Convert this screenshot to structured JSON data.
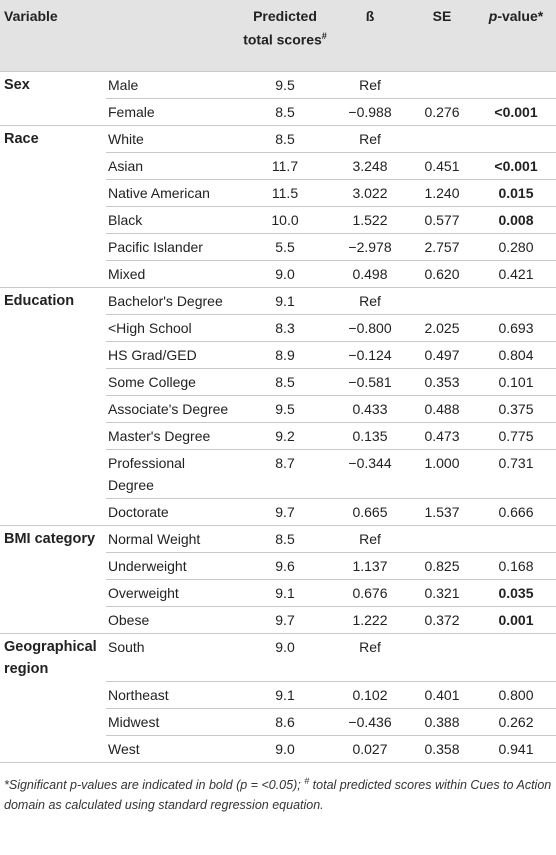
{
  "headers": {
    "variable": "Variable",
    "predicted": "Predicted total scores",
    "predicted_mark": "#",
    "beta": "ß",
    "se": "SE",
    "p_italic": "p",
    "p_rest": "-value*"
  },
  "groups": [
    {
      "variable": "Sex",
      "rows": [
        {
          "category": "Male",
          "pred": "9.5",
          "beta": "Ref",
          "se": "",
          "p": "",
          "bold": false
        },
        {
          "category": "Female",
          "pred": "8.5",
          "beta": "−0.988",
          "se": "0.276",
          "p": "<0.001",
          "bold": true
        }
      ]
    },
    {
      "variable": "Race",
      "rows": [
        {
          "category": "White",
          "pred": "8.5",
          "beta": "Ref",
          "se": "",
          "p": "",
          "bold": false
        },
        {
          "category": "Asian",
          "pred": "11.7",
          "beta": "3.248",
          "se": "0.451",
          "p": "<0.001",
          "bold": true
        },
        {
          "category": "Native American",
          "pred": "11.5",
          "beta": "3.022",
          "se": "1.240",
          "p": "0.015",
          "bold": true
        },
        {
          "category": "Black",
          "pred": "10.0",
          "beta": "1.522",
          "se": "0.577",
          "p": "0.008",
          "bold": true
        },
        {
          "category": "Pacific Islander",
          "pred": "5.5",
          "beta": "−2.978",
          "se": "2.757",
          "p": "0.280",
          "bold": false
        },
        {
          "category": "Mixed",
          "pred": "9.0",
          "beta": "0.498",
          "se": "0.620",
          "p": "0.421",
          "bold": false
        }
      ]
    },
    {
      "variable": "Education",
      "rows": [
        {
          "category": "Bachelor's Degree",
          "pred": "9.1",
          "beta": "Ref",
          "se": "",
          "p": "",
          "bold": false
        },
        {
          "category": "<High School",
          "pred": "8.3",
          "beta": "−0.800",
          "se": "2.025",
          "p": "0.693",
          "bold": false
        },
        {
          "category": "HS Grad/GED",
          "pred": "8.9",
          "beta": "−0.124",
          "se": "0.497",
          "p": "0.804",
          "bold": false
        },
        {
          "category": "Some College",
          "pred": "8.5",
          "beta": "−0.581",
          "se": "0.353",
          "p": "0.101",
          "bold": false
        },
        {
          "category": "Associate's Degree",
          "pred": "9.5",
          "beta": "0.433",
          "se": "0.488",
          "p": "0.375",
          "bold": false
        },
        {
          "category": "Master's Degree",
          "pred": "9.2",
          "beta": "0.135",
          "se": "0.473",
          "p": "0.775",
          "bold": false
        },
        {
          "category": "Professional Degree",
          "pred": "8.7",
          "beta": "−0.344",
          "se": "1.000",
          "p": "0.731",
          "bold": false
        },
        {
          "category": "Doctorate",
          "pred": "9.7",
          "beta": "0.665",
          "se": "1.537",
          "p": "0.666",
          "bold": false
        }
      ]
    },
    {
      "variable": "BMI category",
      "rows": [
        {
          "category": "Normal Weight",
          "pred": "8.5",
          "beta": "Ref",
          "se": "",
          "p": "",
          "bold": false
        },
        {
          "category": "Underweight",
          "pred": "9.6",
          "beta": "1.137",
          "se": "0.825",
          "p": "0.168",
          "bold": false
        },
        {
          "category": "Overweight",
          "pred": "9.1",
          "beta": "0.676",
          "se": "0.321",
          "p": "0.035",
          "bold": true
        },
        {
          "category": "Obese",
          "pred": "9.7",
          "beta": "1.222",
          "se": "0.372",
          "p": "0.001",
          "bold": true
        }
      ]
    },
    {
      "variable": "Geographical region",
      "rows": [
        {
          "category": "South",
          "pred": "9.0",
          "beta": "Ref",
          "se": "",
          "p": "",
          "bold": false
        },
        {
          "category": "Northeast",
          "pred": "9.1",
          "beta": "0.102",
          "se": "0.401",
          "p": "0.800",
          "bold": false
        },
        {
          "category": "Midwest",
          "pred": "8.6",
          "beta": "−0.436",
          "se": "0.388",
          "p": "0.262",
          "bold": false
        },
        {
          "category": "West",
          "pred": "9.0",
          "beta": "0.027",
          "se": "0.358",
          "p": "0.941",
          "bold": false
        }
      ]
    }
  ],
  "footnote": {
    "part1": "*Significant p-values are indicated in bold (p = <0.05); ",
    "mark": "#",
    "part2": " total predicted scores within Cues to Action domain as calculated using standard regression equation."
  }
}
